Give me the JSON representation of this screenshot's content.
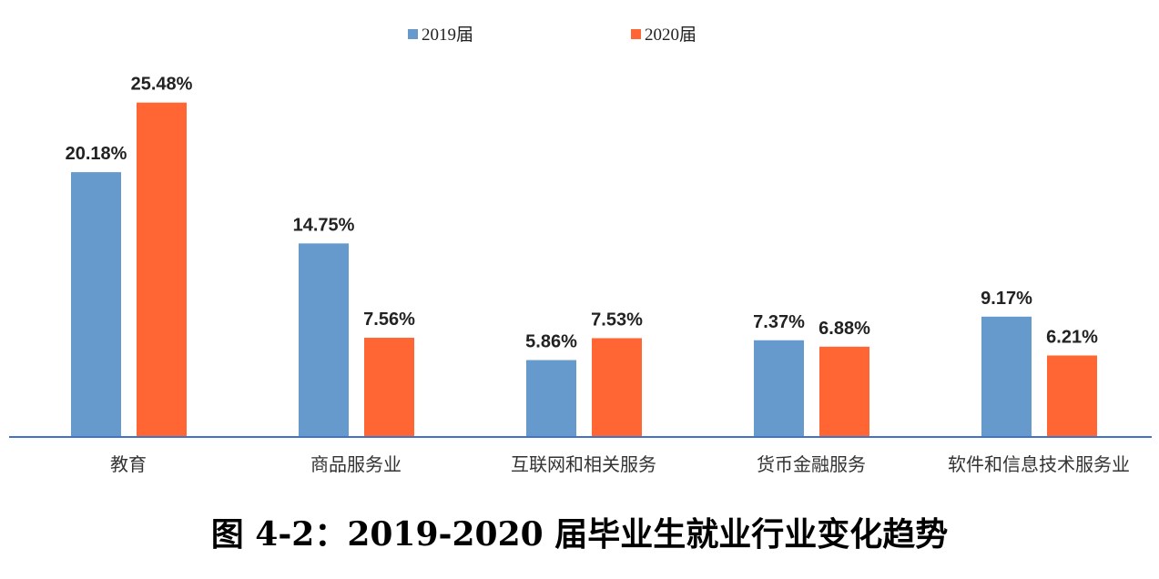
{
  "caption": "图 4-2：2019-2020 届毕业生就业行业变化趋势",
  "colors": {
    "s2019": "#6699CC",
    "s2020": "#FF6633",
    "axis": "#4472C4"
  },
  "chart_data": {
    "type": "bar",
    "categories": [
      "教育",
      "商品服务业",
      "互联网和相关服务",
      "货币金融服务",
      "软件和信息技术服务业"
    ],
    "series": [
      {
        "name": "2019届",
        "values": [
          20.18,
          14.75,
          5.86,
          7.37,
          9.17
        ],
        "labels": [
          "20.18%",
          "14.75%",
          "5.86%",
          "7.37%",
          "9.17%"
        ]
      },
      {
        "name": "2020届",
        "values": [
          25.48,
          7.56,
          7.53,
          6.88,
          6.21
        ],
        "labels": [
          "25.48%",
          "7.56%",
          "7.53%",
          "6.88%",
          "6.21%"
        ]
      }
    ],
    "title": "",
    "xlabel": "",
    "ylabel": "",
    "ylim": [
      0,
      26.5
    ],
    "legend": "top-center",
    "grid": false
  }
}
